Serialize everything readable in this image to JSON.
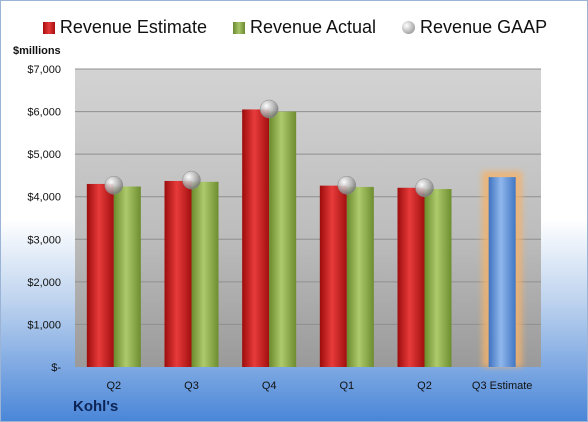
{
  "chart_data": {
    "type": "bar",
    "ylabel": "$millions",
    "company": "Kohl's",
    "categories": [
      "Q2",
      "Q3",
      "Q4",
      "Q1",
      "Q2",
      "Q3 Estimate"
    ],
    "series": [
      {
        "name": "Revenue Estimate",
        "values": [
          4300,
          4370,
          6050,
          4260,
          4210,
          null
        ]
      },
      {
        "name": "Revenue Actual",
        "values": [
          4240,
          4350,
          6000,
          4230,
          4180,
          null
        ]
      },
      {
        "name": "Revenue GAAP",
        "values": [
          4270,
          4390,
          6060,
          4270,
          4210,
          null
        ]
      },
      {
        "name": "Q3 Estimate",
        "values": [
          null,
          null,
          null,
          null,
          null,
          4460
        ]
      }
    ],
    "ylim": [
      0,
      7000
    ],
    "yticks": [
      {
        "value": 0,
        "label": "$-"
      },
      {
        "value": 1000,
        "label": "$1,000"
      },
      {
        "value": 2000,
        "label": "$2,000"
      },
      {
        "value": 3000,
        "label": "$3,000"
      },
      {
        "value": 4000,
        "label": "$4,000"
      },
      {
        "value": 5000,
        "label": "$5,000"
      },
      {
        "value": 6000,
        "label": "$6,000"
      },
      {
        "value": 7000,
        "label": "$7,000"
      }
    ],
    "grid": true,
    "legend_position": "top",
    "colors": {
      "estimate": "#c62020",
      "actual": "#8aad46",
      "gaap": "#a8a8a8",
      "q3_estimate": "#5b8fd6",
      "highlight": "#f4b26a"
    }
  }
}
